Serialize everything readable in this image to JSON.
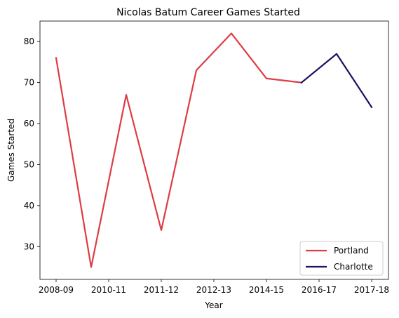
{
  "chart_data": {
    "type": "line",
    "title": "Nicolas Batum Career Games Started",
    "xlabel": "Year",
    "ylabel": "Games Started",
    "x_tick_labels": [
      "2008-09",
      "2010-11",
      "2011-12",
      "2012-13",
      "2014-15",
      "2016-17",
      "2017-18"
    ],
    "x_count": 10,
    "ylim": [
      22,
      85
    ],
    "y_ticks": [
      30,
      40,
      50,
      60,
      70,
      80
    ],
    "grid": false,
    "legend_position": "bottom-right",
    "series": [
      {
        "name": "Portland",
        "color": "#de3c44",
        "x_index": [
          0,
          1,
          2,
          3,
          4,
          5,
          6,
          7
        ],
        "values": [
          76,
          25,
          67,
          34,
          73,
          82,
          71,
          70
        ]
      },
      {
        "name": "Charlotte",
        "color": "#1d1160",
        "x_index": [
          7,
          8,
          9
        ],
        "values": [
          70,
          77,
          64
        ]
      }
    ]
  }
}
